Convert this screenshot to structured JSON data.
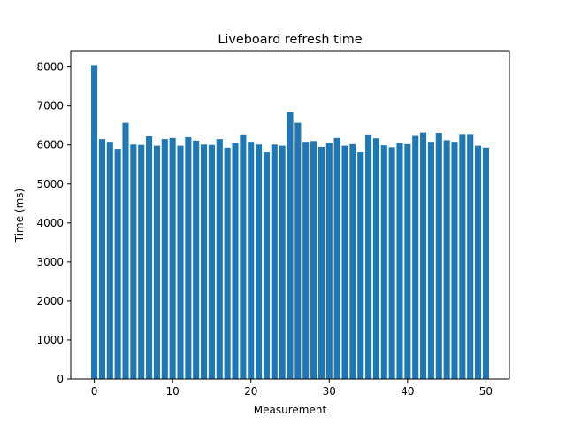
{
  "chart_data": {
    "type": "bar",
    "title": "Liveboard refresh time",
    "xlabel": "Measurement",
    "ylabel": "Time (ms)",
    "bar_color": "#1f77b4",
    "xlim": [
      -3,
      53
    ],
    "ylim": [
      0,
      8400
    ],
    "x_ticks": [
      0,
      10,
      20,
      30,
      40,
      50
    ],
    "y_ticks": [
      0,
      1000,
      2000,
      3000,
      4000,
      5000,
      6000,
      7000,
      8000
    ],
    "grid": false,
    "x": [
      0,
      1,
      2,
      3,
      4,
      5,
      6,
      7,
      8,
      9,
      10,
      11,
      12,
      13,
      14,
      15,
      16,
      17,
      18,
      19,
      20,
      21,
      22,
      23,
      24,
      25,
      26,
      27,
      28,
      29,
      30,
      31,
      32,
      33,
      34,
      35,
      36,
      37,
      38,
      39,
      40,
      41,
      42,
      43,
      44,
      45,
      46,
      47,
      48,
      49,
      50
    ],
    "values": [
      8050,
      6150,
      6080,
      5900,
      6570,
      6010,
      6000,
      6220,
      5980,
      6150,
      6180,
      5980,
      6200,
      6110,
      6010,
      6000,
      6150,
      5930,
      6050,
      6270,
      6080,
      6010,
      5810,
      6010,
      5980,
      6840,
      6570,
      6080,
      6100,
      5950,
      6050,
      6180,
      5980,
      6020,
      5810,
      6270,
      6170,
      5990,
      5940,
      6050,
      6020,
      6230,
      6320,
      6080,
      6310,
      6120,
      6080,
      6280,
      6280,
      5980,
      5930
    ]
  }
}
